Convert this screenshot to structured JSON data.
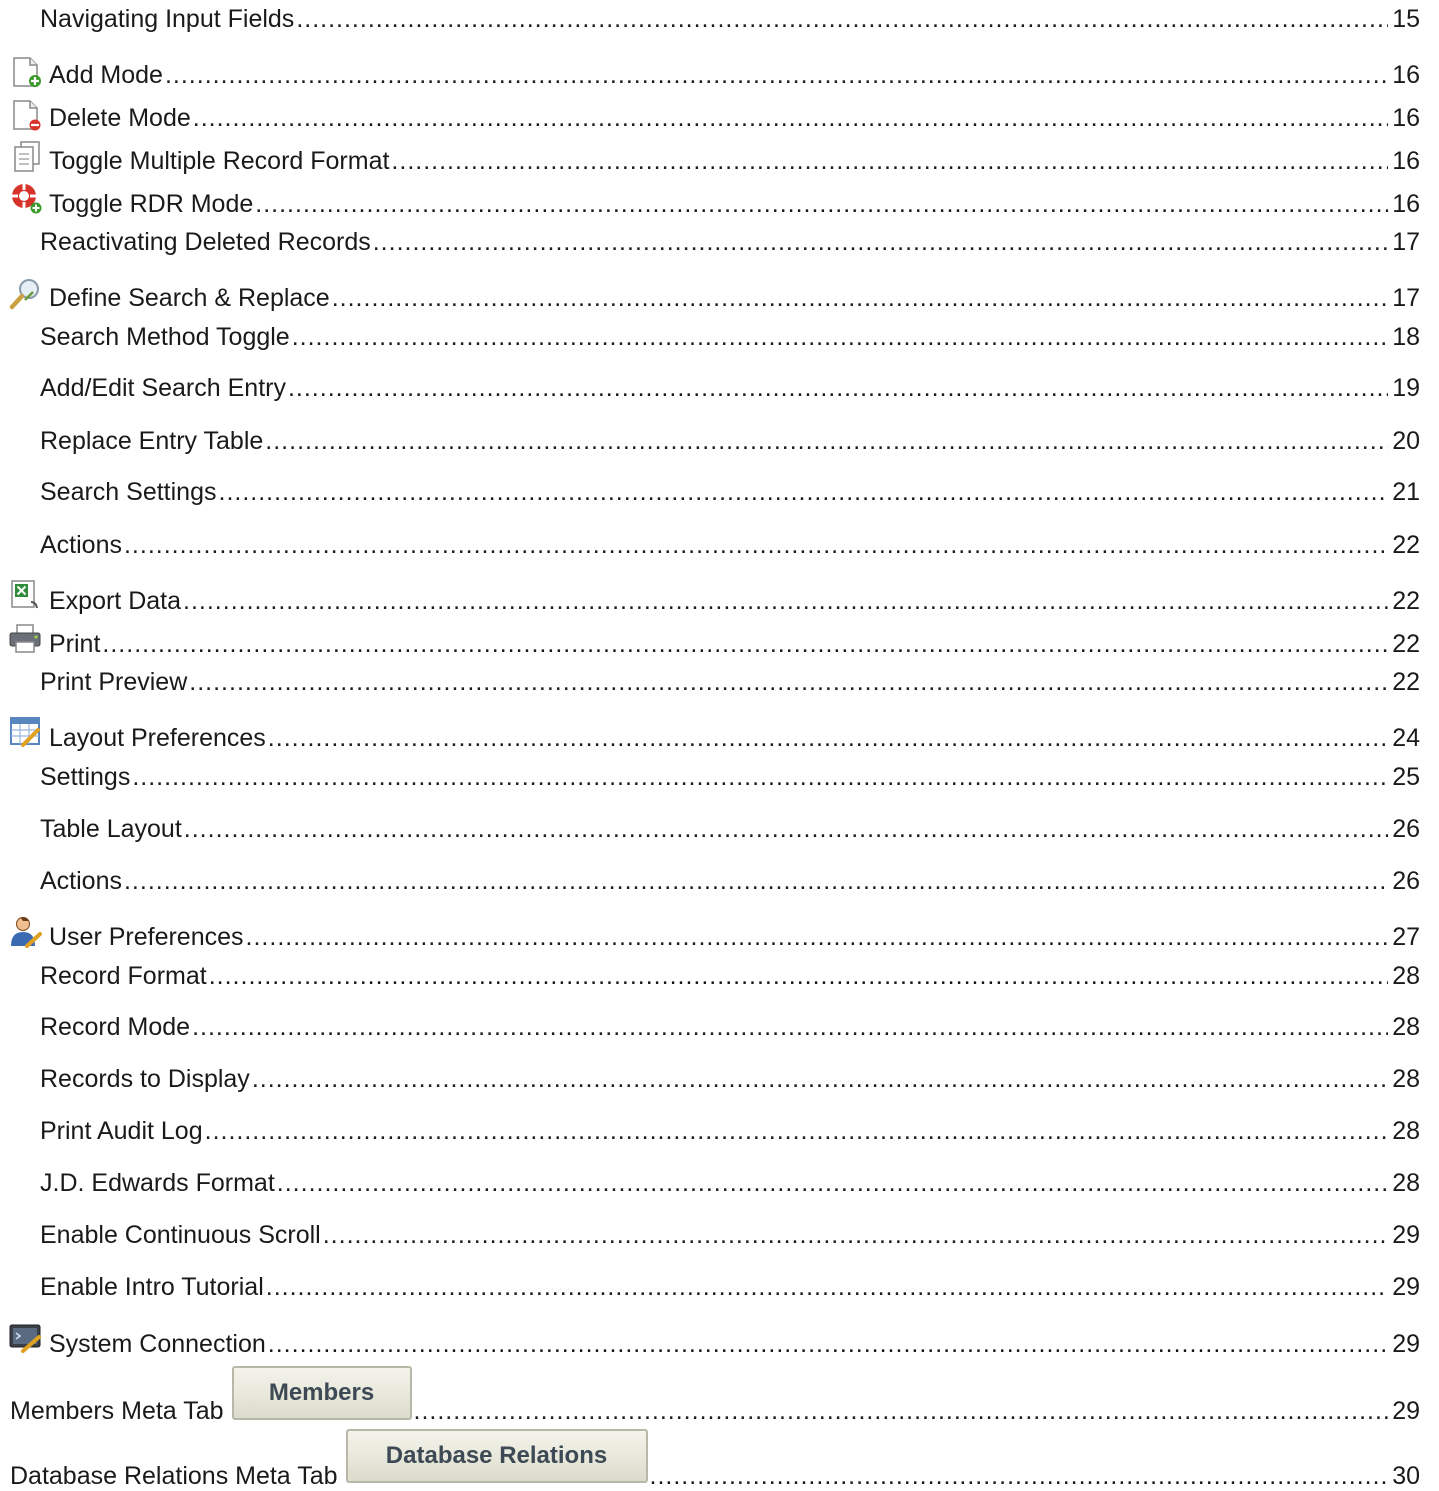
{
  "entries": [
    {
      "title": "Navigating Input Fields",
      "page": "15"
    },
    {
      "title": "Add Mode",
      "page": "16",
      "icon": "add-mode-icon"
    },
    {
      "title": "Delete Mode",
      "page": "16",
      "icon": "delete-mode-icon"
    },
    {
      "title": "Toggle Multiple Record Format",
      "page": "16",
      "icon": "multiple-record-icon"
    },
    {
      "title": "Toggle RDR Mode",
      "page": "16",
      "icon": "rdr-mode-icon"
    },
    {
      "title": "Reactivating Deleted Records",
      "page": "17"
    },
    {
      "title": "Define Search & Replace",
      "page": "17",
      "icon": "search-replace-icon"
    },
    {
      "title": "Search Method Toggle",
      "page": "18"
    },
    {
      "title": "Add/Edit Search Entry",
      "page": "19"
    },
    {
      "title": "Replace Entry Table",
      "page": "20"
    },
    {
      "title": "Search Settings",
      "page": "21"
    },
    {
      "title": "Actions",
      "page": "22"
    },
    {
      "title": "Export Data",
      "page": "22",
      "icon": "export-excel-icon"
    },
    {
      "title": "Print",
      "page": "22",
      "icon": "printer-icon"
    },
    {
      "title": "Print Preview",
      "page": "22"
    },
    {
      "title": "Layout Preferences",
      "page": "24",
      "icon": "layout-preferences-icon"
    },
    {
      "title": "Settings",
      "page": "25"
    },
    {
      "title": "Table Layout",
      "page": "26"
    },
    {
      "title": "Actions",
      "page": "26"
    },
    {
      "title": "User Preferences",
      "page": "27",
      "icon": "user-preferences-icon"
    },
    {
      "title": "Record Format",
      "page": "28"
    },
    {
      "title": "Record Mode",
      "page": "28"
    },
    {
      "title": "Records to Display",
      "page": "28"
    },
    {
      "title": "Print Audit Log",
      "page": "28"
    },
    {
      "title": "J.D. Edwards Format",
      "page": "28"
    },
    {
      "title": "Enable Continuous Scroll",
      "page": "29"
    },
    {
      "title": "Enable Intro Tutorial",
      "page": "29"
    },
    {
      "title": "System Connection",
      "page": "29",
      "icon": "system-connection-icon"
    },
    {
      "title": "Members Meta Tab",
      "page": "29",
      "button": "Members"
    },
    {
      "title": "Database Relations Meta Tab",
      "page": "30",
      "button": "Database Relations"
    }
  ]
}
